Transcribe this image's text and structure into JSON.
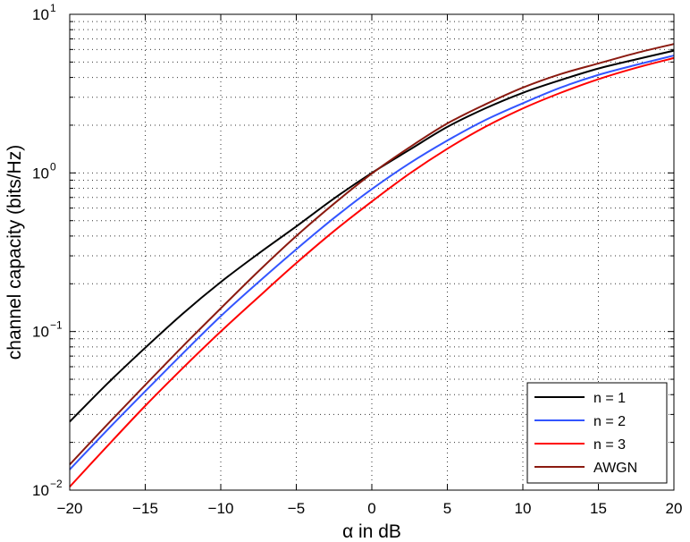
{
  "chart_data": {
    "type": "line",
    "title": "",
    "xlabel": "α in dB",
    "ylabel": "channel capacity (bits/Hz)",
    "xlim": [
      -20,
      20
    ],
    "ylim": [
      0.01,
      10
    ],
    "yscale": "log",
    "grid": true,
    "legend_position": "bottom-right",
    "x_ticks": [
      -20,
      -15,
      -10,
      -5,
      0,
      5,
      10,
      15,
      20
    ],
    "x_tick_labels": [
      "−20",
      "−15",
      "−10",
      "−5",
      "0",
      "5",
      "10",
      "15",
      "20"
    ],
    "y_ticks": [
      0.01,
      0.1,
      1,
      10
    ],
    "y_tick_labels": [
      {
        "base": "10",
        "exp": "−2"
      },
      {
        "base": "10",
        "exp": "−1"
      },
      {
        "base": "10",
        "exp": "0"
      },
      {
        "base": "10",
        "exp": "1"
      }
    ],
    "x": [
      -20,
      -17.5,
      -15,
      -12.5,
      -10,
      -7.5,
      -5,
      -2.5,
      0,
      2.5,
      5,
      7.5,
      10,
      12.5,
      15,
      17.5,
      20
    ],
    "series": [
      {
        "name": "n = 1",
        "color": "#000000",
        "values": [
          0.027,
          0.047,
          0.079,
          0.13,
          0.205,
          0.31,
          0.46,
          0.69,
          1.0,
          1.4,
          1.95,
          2.55,
          3.2,
          3.85,
          4.55,
          5.2,
          5.9
        ]
      },
      {
        "name": "n = 2",
        "color": "#3355ff",
        "values": [
          0.0135,
          0.024,
          0.042,
          0.073,
          0.125,
          0.205,
          0.33,
          0.52,
          0.79,
          1.15,
          1.6,
          2.15,
          2.75,
          3.45,
          4.15,
          4.8,
          5.5
        ]
      },
      {
        "name": "n = 3",
        "color": "#ff0000",
        "values": [
          0.0105,
          0.019,
          0.034,
          0.059,
          0.1,
          0.165,
          0.27,
          0.43,
          0.66,
          0.99,
          1.42,
          1.95,
          2.55,
          3.2,
          3.9,
          4.6,
          5.3
        ]
      },
      {
        "name": "AWGN",
        "color": "#8b1a10",
        "values": [
          0.0145,
          0.026,
          0.046,
          0.081,
          0.14,
          0.24,
          0.4,
          0.64,
          0.99,
          1.45,
          2.05,
          2.7,
          3.45,
          4.2,
          4.9,
          5.7,
          6.5
        ]
      }
    ]
  }
}
